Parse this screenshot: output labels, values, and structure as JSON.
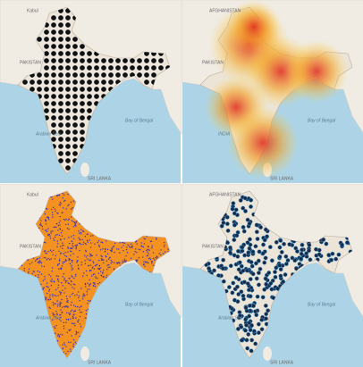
{
  "panels": [
    {
      "labels": [
        "Kabul",
        "PAKISTAN",
        "Arabian Sea",
        "Bay of Bengal",
        "SRI LANKA"
      ]
    },
    {
      "labels": [
        "AFGHANISTAN",
        "PAKISTAN",
        "INDIA",
        "Bay of Bengal",
        "SRI LANKA"
      ]
    },
    {
      "labels": [
        "Kabul",
        "PAKISTAN",
        "Arabian Sea",
        "Bay of Bengal",
        "SRI LANKA"
      ]
    },
    {
      "labels": [
        "AFGHANISTAN",
        "PAKISTAN",
        "Arabian Sea",
        "Bay of Bengal",
        "SRI LANKA"
      ]
    }
  ]
}
